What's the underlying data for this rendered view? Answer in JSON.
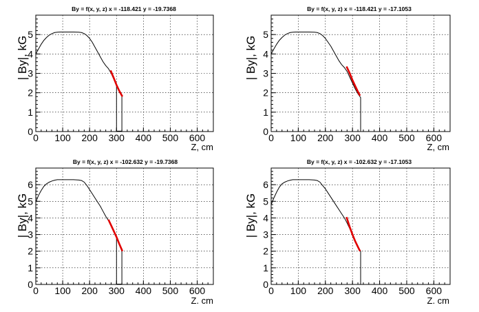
{
  "chart_data": [
    {
      "type": "line",
      "title": "By = f(x, y, z) x = -118.421  y = -19.7368",
      "xlabel": "Z, cm",
      "ylabel": "| By|, kG",
      "xlim": [
        0,
        660
      ],
      "ylim": [
        0,
        6
      ],
      "xticks": [
        0,
        100,
        200,
        300,
        400,
        500,
        600
      ],
      "yticks": [
        0,
        1,
        2,
        3,
        4,
        5
      ],
      "grid": true,
      "series": [
        {
          "x": [
            0,
            10,
            20,
            30,
            40,
            50,
            60,
            70,
            80,
            90,
            100,
            120,
            140,
            160,
            170,
            180,
            190,
            200,
            210,
            220,
            230,
            240,
            250,
            260,
            270,
            280,
            290,
            300,
            310,
            320,
            320,
            300,
            300,
            290
          ],
          "y": [
            4.0,
            4.25,
            4.5,
            4.7,
            4.85,
            4.97,
            5.05,
            5.1,
            5.12,
            5.13,
            5.13,
            5.13,
            5.13,
            5.12,
            5.1,
            5.05,
            4.95,
            4.8,
            4.6,
            4.35,
            4.1,
            3.85,
            3.6,
            3.4,
            3.25,
            3.0,
            2.7,
            2.4,
            2.1,
            1.8,
            0.02,
            0.02,
            2.4,
            2.7
          ]
        },
        {
          "x": [
            278,
            290,
            300,
            310,
            322
          ],
          "y": [
            3.15,
            2.75,
            2.4,
            2.1,
            1.8
          ]
        }
      ]
    },
    {
      "type": "line",
      "title": "By = f(x, y, z) x = -118.421  y = -17.1053",
      "xlabel": "Z, cm",
      "ylabel": "| By|, kG",
      "xlim": [
        0,
        660
      ],
      "ylim": [
        0,
        6
      ],
      "xticks": [
        0,
        100,
        200,
        300,
        400,
        500,
        600
      ],
      "yticks": [
        0,
        1,
        2,
        3,
        4,
        5
      ],
      "grid": true,
      "series": [
        {
          "x": [
            0,
            10,
            20,
            30,
            40,
            50,
            60,
            70,
            80,
            90,
            100,
            120,
            140,
            160,
            170,
            180,
            190,
            200,
            210,
            220,
            230,
            240,
            250,
            260,
            270,
            280,
            290,
            300,
            310,
            320,
            330,
            330
          ],
          "y": [
            4.0,
            4.25,
            4.5,
            4.7,
            4.85,
            4.97,
            5.05,
            5.1,
            5.12,
            5.13,
            5.13,
            5.13,
            5.13,
            5.12,
            5.1,
            5.05,
            4.95,
            4.8,
            4.6,
            4.4,
            4.15,
            3.9,
            3.65,
            3.45,
            3.3,
            3.1,
            2.8,
            2.5,
            2.2,
            1.95,
            1.75,
            0.02
          ]
        },
        {
          "x": [
            278,
            290,
            300,
            310,
            322,
            328
          ],
          "y": [
            3.35,
            3.0,
            2.65,
            2.35,
            2.0,
            1.85
          ]
        }
      ]
    },
    {
      "type": "line",
      "title": "By = f(x, y, z) x = -102.632  y = -19.7368",
      "xlabel": "Z. cm",
      "ylabel": "| By|, kG",
      "xlim": [
        0,
        660
      ],
      "ylim": [
        0,
        7
      ],
      "xticks": [
        0,
        100,
        200,
        300,
        400,
        500,
        600
      ],
      "yticks": [
        0,
        1,
        2,
        3,
        4,
        5,
        6
      ],
      "grid": true,
      "series": [
        {
          "x": [
            0,
            10,
            20,
            30,
            40,
            50,
            60,
            70,
            80,
            90,
            100,
            120,
            140,
            160,
            170,
            180,
            190,
            200,
            210,
            220,
            230,
            240,
            250,
            260,
            270,
            280,
            290,
            300,
            310,
            320,
            320,
            300,
            300,
            290
          ],
          "y": [
            4.95,
            5.35,
            5.65,
            5.9,
            6.05,
            6.15,
            6.22,
            6.27,
            6.3,
            6.3,
            6.3,
            6.3,
            6.3,
            6.28,
            6.25,
            6.15,
            5.95,
            5.7,
            5.45,
            5.2,
            4.95,
            4.7,
            4.4,
            4.1,
            3.85,
            3.55,
            3.2,
            2.85,
            2.45,
            2.05,
            0.02,
            0.02,
            2.85,
            3.2
          ]
        },
        {
          "x": [
            270,
            280,
            290,
            300,
            310,
            322
          ],
          "y": [
            3.9,
            3.55,
            3.2,
            2.85,
            2.45,
            2.0
          ]
        }
      ]
    },
    {
      "type": "line",
      "title": "By = f(x, y, z) x = -102.632  y = -17.1053",
      "xlabel": "Z. cm",
      "ylabel": "| By|, kG",
      "xlim": [
        0,
        660
      ],
      "ylim": [
        0,
        7
      ],
      "xticks": [
        0,
        100,
        200,
        300,
        400,
        500,
        600
      ],
      "yticks": [
        0,
        1,
        2,
        3,
        4,
        5,
        6
      ],
      "grid": true,
      "series": [
        {
          "x": [
            0,
            10,
            20,
            30,
            40,
            50,
            60,
            70,
            80,
            90,
            100,
            120,
            140,
            160,
            170,
            180,
            190,
            200,
            210,
            220,
            230,
            240,
            250,
            260,
            270,
            280,
            290,
            300,
            310,
            320,
            330,
            330
          ],
          "y": [
            4.8,
            5.2,
            5.55,
            5.85,
            6.05,
            6.15,
            6.22,
            6.27,
            6.3,
            6.3,
            6.3,
            6.3,
            6.3,
            6.28,
            6.25,
            6.15,
            5.95,
            5.75,
            5.5,
            5.25,
            5.0,
            4.75,
            4.5,
            4.25,
            4.0,
            3.7,
            3.35,
            3.0,
            2.6,
            2.2,
            2.0,
            0.02
          ]
        },
        {
          "x": [
            278,
            290,
            300,
            310,
            322,
            328
          ],
          "y": [
            4.05,
            3.45,
            3.0,
            2.6,
            2.2,
            2.0
          ]
        }
      ]
    }
  ]
}
